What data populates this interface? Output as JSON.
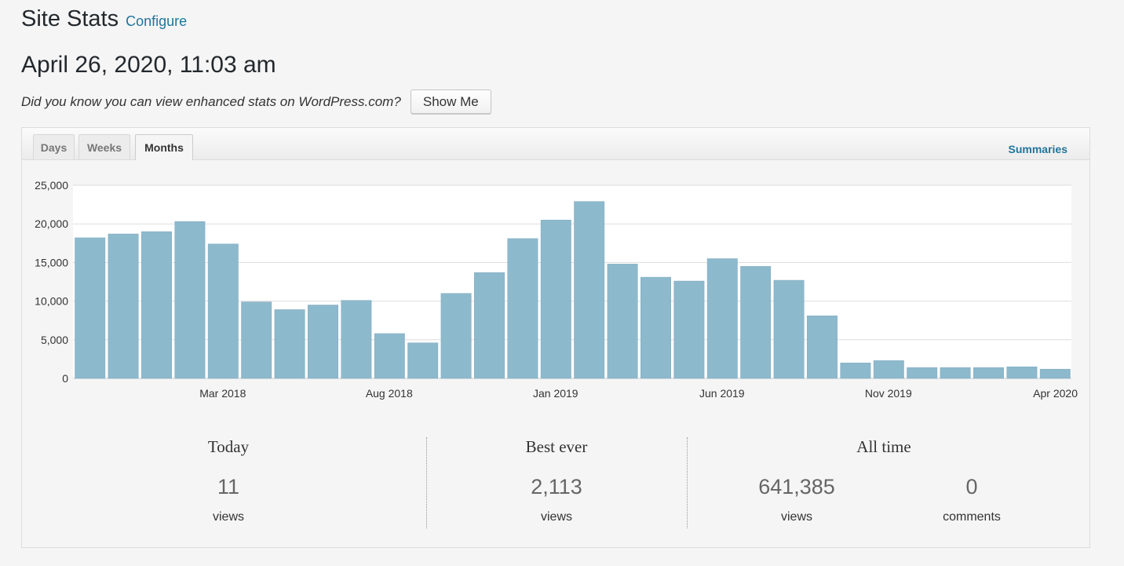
{
  "header": {
    "title": "Site Stats",
    "configure_label": "Configure"
  },
  "datetime": "April 26, 2020, 11:03 am",
  "promo": {
    "text": "Did you know you can view enhanced stats on WordPress.com?",
    "button_label": "Show Me"
  },
  "tabs": [
    {
      "label": "Days",
      "active": false
    },
    {
      "label": "Weeks",
      "active": false
    },
    {
      "label": "Months",
      "active": true
    }
  ],
  "summaries_label": "Summaries",
  "colors": {
    "bar": "#8db9cc",
    "link": "#21759b",
    "grid": "#dddddd"
  },
  "chart_data": {
    "type": "bar",
    "y_ticks": [
      "0",
      "5,000",
      "10,000",
      "15,000",
      "20,000",
      "25,000"
    ],
    "ylim": [
      0,
      25000
    ],
    "x_tick_labels": [
      {
        "label": "Mar 2018",
        "index": 4
      },
      {
        "label": "Aug 2018",
        "index": 9
      },
      {
        "label": "Jan 2019",
        "index": 14
      },
      {
        "label": "Jun 2019",
        "index": 19
      },
      {
        "label": "Nov 2019",
        "index": 24
      },
      {
        "label": "Apr 2020",
        "index": 29
      }
    ],
    "values": [
      18200,
      18700,
      19000,
      20300,
      17400,
      9900,
      8900,
      9500,
      10100,
      5800,
      4600,
      11000,
      13700,
      18100,
      20500,
      22900,
      14800,
      13100,
      12600,
      15500,
      14500,
      12700,
      8100,
      2000,
      2300,
      1400,
      1400,
      1400,
      1500,
      1200
    ],
    "grid": true
  },
  "stats": {
    "today": {
      "title": "Today",
      "value": "11",
      "unit": "views"
    },
    "best": {
      "title": "Best ever",
      "value": "2,113",
      "unit": "views"
    },
    "all_time": {
      "title": "All time",
      "views": {
        "value": "641,385",
        "unit": "views"
      },
      "comments": {
        "value": "0",
        "unit": "comments"
      }
    }
  }
}
